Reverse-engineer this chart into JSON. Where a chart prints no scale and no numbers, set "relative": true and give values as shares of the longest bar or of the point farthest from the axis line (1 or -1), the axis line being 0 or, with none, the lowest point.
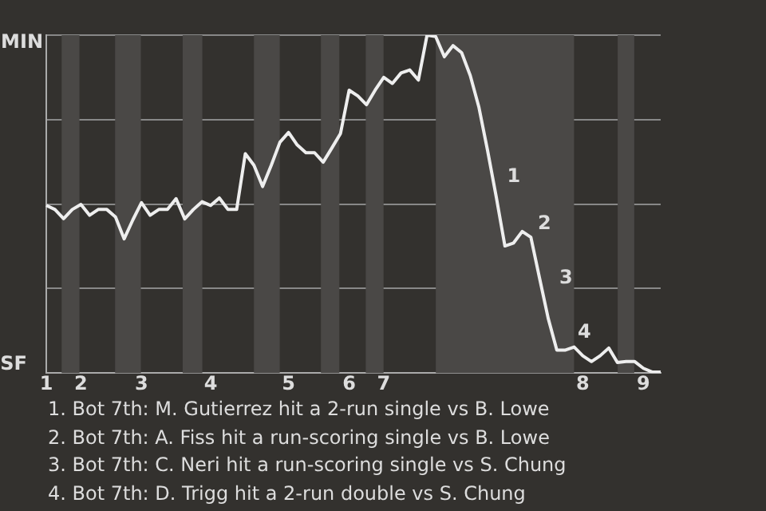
{
  "chart_data": {
    "type": "line",
    "relative": true,
    "categories": [
      "1",
      null,
      null,
      null,
      "2",
      null,
      null,
      null,
      null,
      null,
      null,
      "3",
      null,
      null,
      null,
      null,
      null,
      null,
      null,
      "4",
      null,
      null,
      null,
      null,
      null,
      null,
      null,
      null,
      "5",
      null,
      null,
      null,
      null,
      null,
      null,
      "6",
      null,
      null,
      null,
      "7",
      null,
      null,
      null,
      null,
      null,
      null,
      null,
      null,
      null,
      null,
      null,
      null,
      null,
      null,
      null,
      null,
      null,
      null,
      null,
      null,
      null,
      null,
      "8",
      null,
      null,
      null,
      null,
      null,
      null,
      "9",
      null,
      null
    ],
    "series": [
      {
        "color": "#eeeeee",
        "values": [
          0.496,
          0.484,
          0.457,
          0.484,
          0.499,
          0.467,
          0.484,
          0.484,
          0.462,
          0.397,
          0.453,
          0.504,
          0.467,
          0.484,
          0.484,
          0.516,
          0.456,
          0.484,
          0.507,
          0.496,
          0.518,
          0.484,
          0.484,
          0.649,
          0.615,
          0.552,
          0.615,
          0.683,
          0.712,
          0.675,
          0.652,
          0.652,
          0.624,
          0.666,
          0.709,
          0.837,
          0.82,
          0.794,
          0.837,
          0.875,
          0.857,
          0.888,
          0.897,
          0.867,
          1,
          0.996,
          0.936,
          0.969,
          0.948,
          0.88,
          0.786,
          0.658,
          0.521,
          0.376,
          0.385,
          0.419,
          0.402,
          0.281,
          0.162,
          0.068,
          0.068,
          0.077,
          0.051,
          0.034,
          0.051,
          0.074,
          0.031,
          0.034,
          0.034,
          0.014,
          0.003,
          0.003
        ]
      }
    ],
    "grid": "y",
    "marker": "none",
    "line_style": "solid",
    "legend": false,
    "annotations": [
      "MIN",
      "SF",
      "1",
      "2",
      "3",
      "4",
      "1. Bot 7th: M. Gutierrez hit a 2-run single vs B. Lowe",
      "2. Bot 7th: A. Fiss hit a run-scoring single vs B. Lowe",
      "3. Bot 7th: C. Neri hit a run-scoring single vs S. Chung",
      "4. Bot 7th: D. Trigg hit a 2-run double vs S. Chung"
    ]
  }
}
